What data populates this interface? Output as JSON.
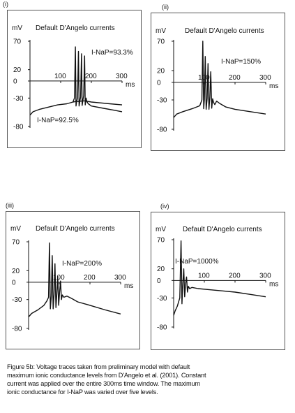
{
  "chart_data": [
    {
      "type": "line",
      "panel_label": "(i)",
      "title": "Default D'Angelo currents",
      "ylabel": "mV",
      "xunit": "ms",
      "xlim": [
        0,
        300
      ],
      "ylim": [
        -80,
        70
      ],
      "xticks": [
        100,
        200,
        300
      ],
      "yticks": [
        70,
        20,
        0,
        -30,
        -80
      ],
      "annotations": [
        "I-NaP=93.3%",
        "I-NaP=92.5%"
      ],
      "series": [
        {
          "x": [
            0,
            10,
            30,
            60,
            90,
            120,
            140,
            145,
            148,
            150,
            152,
            155,
            158,
            160,
            163,
            165,
            168,
            170,
            173,
            175,
            178,
            180,
            183,
            185,
            190,
            200,
            240,
            280,
            300
          ],
          "y": [
            -60,
            -54,
            -50,
            -46,
            -42,
            -40,
            -37,
            -30,
            60,
            -44,
            -36,
            -30,
            52,
            -44,
            -34,
            -28,
            48,
            -43,
            -32,
            -26,
            44,
            -42,
            -30,
            -36,
            -40,
            -44,
            -48,
            -52,
            -54
          ]
        },
        {
          "x": [
            140,
            150,
            160,
            170,
            180,
            190,
            200,
            220,
            260,
            300
          ],
          "y": [
            -37,
            -36,
            -36,
            -35,
            -35,
            -36,
            -37,
            -38,
            -40,
            -42
          ]
        }
      ]
    },
    {
      "type": "line",
      "panel_label": "(ii)",
      "title": "Default D'Angelo currents",
      "ylabel": "mV",
      "xunit": "ms",
      "xlim": [
        0,
        300
      ],
      "ylim": [
        -80,
        70
      ],
      "xticks": [
        100,
        200,
        300
      ],
      "yticks": [
        70,
        20,
        0,
        -30,
        -80
      ],
      "annotations": [
        "I-NaP=150%"
      ],
      "series": [
        {
          "x": [
            0,
            10,
            30,
            60,
            85,
            92,
            95,
            98,
            100,
            103,
            106,
            109,
            112,
            115,
            118,
            121,
            124,
            127,
            130,
            134,
            140,
            150,
            170,
            200,
            250,
            300
          ],
          "y": [
            -60,
            -54,
            -50,
            -45,
            -40,
            -30,
            70,
            -45,
            -30,
            44,
            -46,
            -28,
            32,
            -46,
            -26,
            18,
            -44,
            -28,
            -34,
            -38,
            -32,
            -36,
            -42,
            -46,
            -50,
            -54
          ]
        }
      ]
    },
    {
      "type": "line",
      "panel_label": "(iii)",
      "title": "Default D'Angelo currents",
      "ylabel": "mV",
      "xunit": "ms",
      "xlim": [
        0,
        300
      ],
      "ylim": [
        -80,
        70
      ],
      "xticks": [
        100,
        200,
        300
      ],
      "yticks": [
        70,
        20,
        0,
        -30,
        -80
      ],
      "annotations": [
        "I-NaP=200%"
      ],
      "series": [
        {
          "x": [
            0,
            10,
            30,
            50,
            60,
            65,
            68,
            71,
            74,
            77,
            80,
            83,
            86,
            89,
            92,
            95,
            98,
            101,
            104,
            107,
            110,
            115,
            125,
            140,
            160,
            200,
            250,
            300
          ],
          "y": [
            -60,
            -54,
            -48,
            -40,
            -32,
            -26,
            68,
            -46,
            -24,
            46,
            -46,
            -22,
            32,
            -44,
            -20,
            10,
            -40,
            -18,
            2,
            -30,
            -22,
            -26,
            -24,
            -28,
            -34,
            -40,
            -48,
            -55
          ]
        }
      ]
    },
    {
      "type": "line",
      "panel_label": "(iv)",
      "title": "Default D'Angelo currents",
      "ylabel": "mV",
      "xunit": "ms",
      "xlim": [
        0,
        300
      ],
      "ylim": [
        -80,
        70
      ],
      "xticks": [
        100,
        200,
        300
      ],
      "yticks": [
        70,
        20,
        0,
        -30,
        -80
      ],
      "annotations": [
        "I-NaP=1000%"
      ],
      "series": [
        {
          "x": [
            0,
            5,
            12,
            20,
            24,
            27,
            30,
            33,
            36,
            39,
            42,
            45,
            48,
            52,
            60,
            80,
            120,
            160,
            200,
            250,
            300
          ],
          "y": [
            -60,
            -52,
            -44,
            -30,
            68,
            -40,
            -5,
            20,
            -28,
            -5,
            6,
            -20,
            -10,
            -14,
            -12,
            -14,
            -16,
            -18,
            -20,
            -24,
            -28
          ]
        }
      ]
    }
  ],
  "caption": [
    "Figure 5b: Voltage traces taken from preliminary model with default",
    "maximum ionic conductance levels from D'Angelo et al. (2001). Constant",
    "current was applied over the entire 300ms time window. The maximum",
    "ionic conductance for I-NaP was varied over five levels."
  ]
}
